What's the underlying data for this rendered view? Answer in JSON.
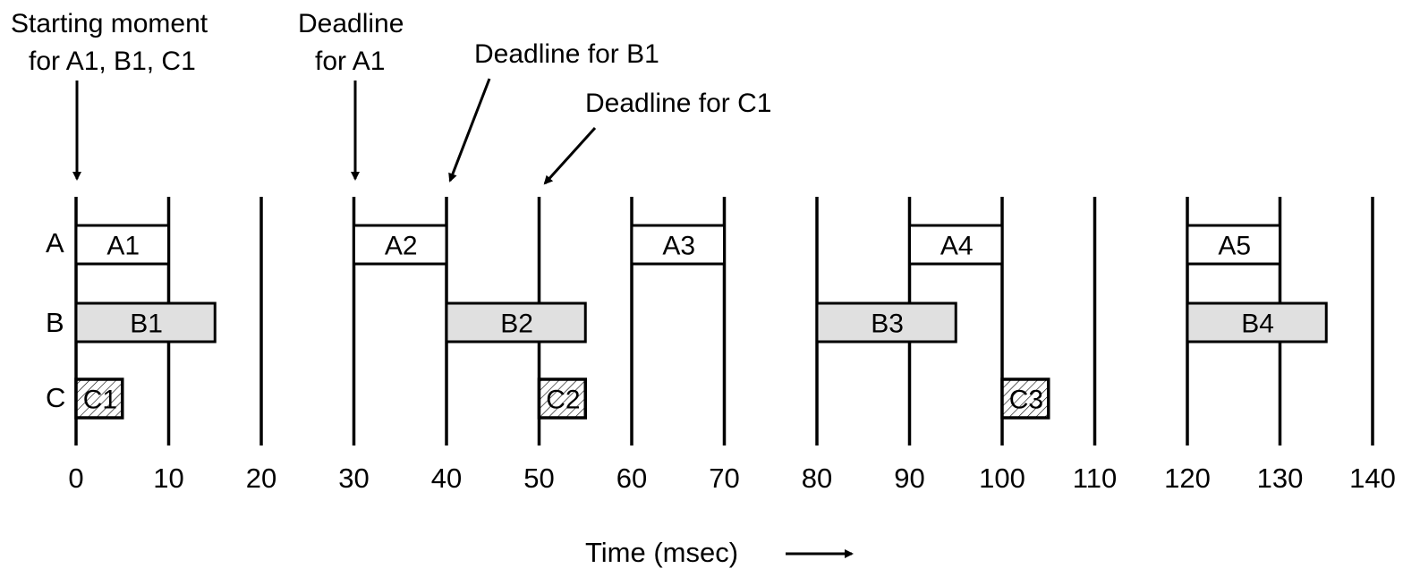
{
  "time_axis": {
    "title": "Time (msec)",
    "ticks": [
      "0",
      "10",
      "20",
      "30",
      "40",
      "50",
      "60",
      "70",
      "80",
      "90",
      "100",
      "110",
      "120",
      "130",
      "140"
    ],
    "tick_values": [
      0,
      10,
      20,
      30,
      40,
      50,
      60,
      70,
      80,
      90,
      100,
      110,
      120,
      130,
      140
    ]
  },
  "rows": [
    {
      "id": "A",
      "label": "A"
    },
    {
      "id": "B",
      "label": "B"
    },
    {
      "id": "C",
      "label": "C"
    }
  ],
  "tasks": [
    {
      "row": "A",
      "label": "A1",
      "start": 0,
      "end": 10
    },
    {
      "row": "A",
      "label": "A2",
      "start": 30,
      "end": 40
    },
    {
      "row": "A",
      "label": "A3",
      "start": 60,
      "end": 70
    },
    {
      "row": "A",
      "label": "A4",
      "start": 90,
      "end": 100
    },
    {
      "row": "A",
      "label": "A5",
      "start": 120,
      "end": 130
    },
    {
      "row": "B",
      "label": "B1",
      "start": 0,
      "end": 15
    },
    {
      "row": "B",
      "label": "B2",
      "start": 40,
      "end": 55
    },
    {
      "row": "B",
      "label": "B3",
      "start": 80,
      "end": 95
    },
    {
      "row": "B",
      "label": "B4",
      "start": 120,
      "end": 135
    },
    {
      "row": "C",
      "label": "C1",
      "start": 0,
      "end": 5
    },
    {
      "row": "C",
      "label": "C2",
      "start": 50,
      "end": 55
    },
    {
      "row": "C",
      "label": "C3",
      "start": 100,
      "end": 105
    }
  ],
  "annotations": {
    "start": {
      "line1": "Starting moment",
      "line2": "for A1, B1, C1",
      "time": 0
    },
    "deadline_a1": {
      "line1": "Deadline",
      "line2": "for A1",
      "time": 30
    },
    "deadline_b1": {
      "text": "Deadline for B1",
      "time": 40
    },
    "deadline_c1": {
      "text": "Deadline for C1",
      "time": 50
    }
  },
  "colors": {
    "a_fill": "#ffffff",
    "b_fill": "#e0e0e0",
    "c_pattern": "hatched",
    "stroke": "#000000"
  }
}
